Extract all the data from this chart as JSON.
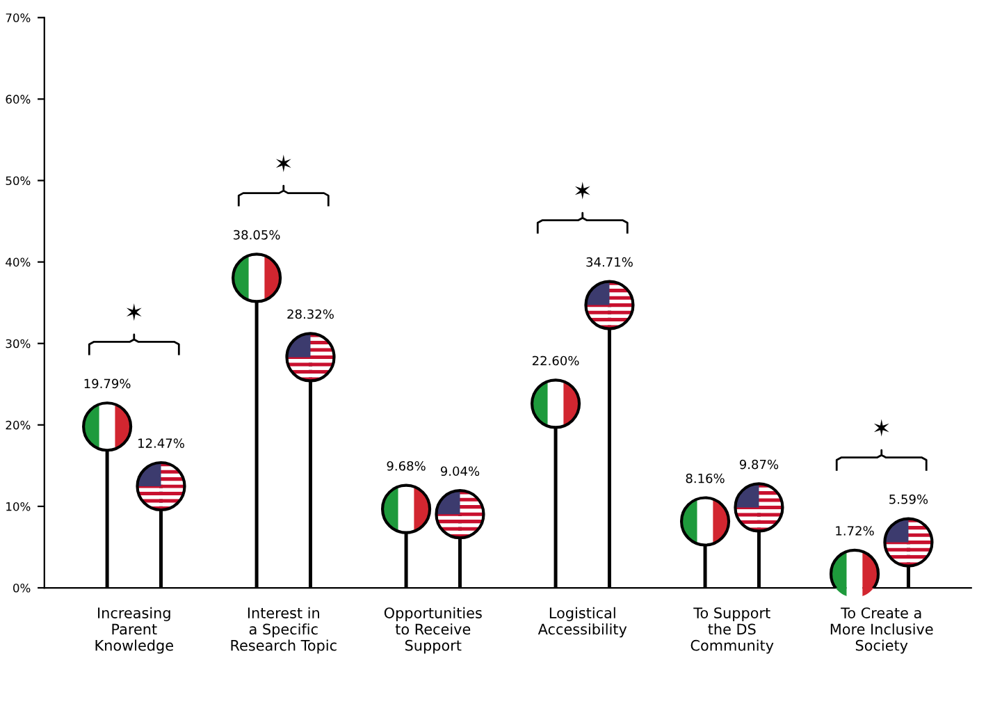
{
  "chart_data": {
    "type": "lollipop",
    "categories": [
      "Increasing\nParent\nKnowledge",
      "Interest in\na Specific\nResearch Topic",
      "Opportunities\nto Receive\nSupport",
      "Logistical\nAccessibility",
      "To Support\nthe DS\nCommunity",
      "To Create a\nMore Inclusive\nSociety"
    ],
    "series": [
      {
        "color": "#000000",
        "values": [
          19.79,
          38.05,
          9.68,
          22.6,
          8.16,
          1.72
        ],
        "value_labels": [
          "19.79%",
          "38.05%",
          "9.68%",
          "22.60%",
          "8.16%",
          "1.72%"
        ]
      },
      {
        "color": "#000000",
        "values": [
          12.47,
          28.32,
          9.04,
          34.71,
          9.87,
          5.59
        ],
        "value_labels": [
          "12.47%",
          "28.32%",
          "9.04%",
          "34.71%",
          "9.87%",
          "5.59%"
        ]
      }
    ],
    "ylim": [
      0,
      70
    ],
    "yticks": [
      {
        "value": 0,
        "label": "0%"
      },
      {
        "value": 10,
        "label": "10%"
      },
      {
        "value": 20,
        "label": "20%"
      },
      {
        "value": 30,
        "label": "30%"
      },
      {
        "value": 40,
        "label": "40%"
      },
      {
        "value": 50,
        "label": "50%"
      },
      {
        "value": 60,
        "label": "60%"
      },
      {
        "value": 70,
        "label": "70%"
      }
    ],
    "grid": false,
    "annotations": [
      "✶",
      "✶",
      null,
      "✶",
      null,
      "✶"
    ]
  }
}
